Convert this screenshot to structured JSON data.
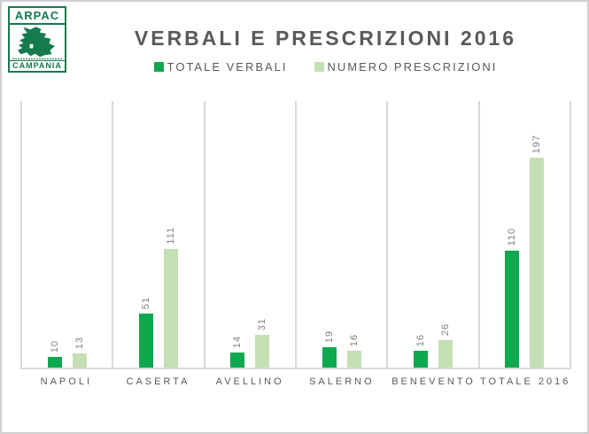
{
  "logo": {
    "agency": "ARPAC",
    "region": "CAMPANIA",
    "map": "campania-region-silhouette",
    "green": "#157a4e"
  },
  "title": "VERBALI E PRESCRIZIONI 2016",
  "legend": [
    {
      "label": "TOTALE VERBALI",
      "color": "#0ea84f"
    },
    {
      "label": "NUMERO PRESCRIZIONI",
      "color": "#c5dfb4"
    }
  ],
  "colors": {
    "title_text": "#595959",
    "value_labels": "#7f7f7f",
    "gridlines": "#d9d9d9",
    "outer_border": "#cfcfcf",
    "series_dark_green": "#0ea84f",
    "series_light_green": "#c5dfb4"
  },
  "chart_data": {
    "type": "bar",
    "title": "VERBALI E PRESCRIZIONI 2016",
    "categories": [
      "NAPOLI",
      "CASERTA",
      "AVELLINO",
      "SALERNO",
      "BENEVENTO",
      "TOTALE 2016"
    ],
    "series": [
      {
        "name": "TOTALE VERBALI",
        "color": "#0ea84f",
        "values": [
          10,
          51,
          14,
          19,
          16,
          110
        ]
      },
      {
        "name": "NUMERO PRESCRIZIONI",
        "color": "#c5dfb4",
        "values": [
          13,
          111,
          31,
          16,
          26,
          197
        ]
      }
    ],
    "xlabel": "",
    "ylabel": "",
    "ylim": [
      0,
      250
    ],
    "value_labels": true,
    "value_label_rotation_deg": 90,
    "grid": "vertical panel separators only, no horizontal gridlines, no y-axis ticks",
    "legend_position": "top-center"
  }
}
